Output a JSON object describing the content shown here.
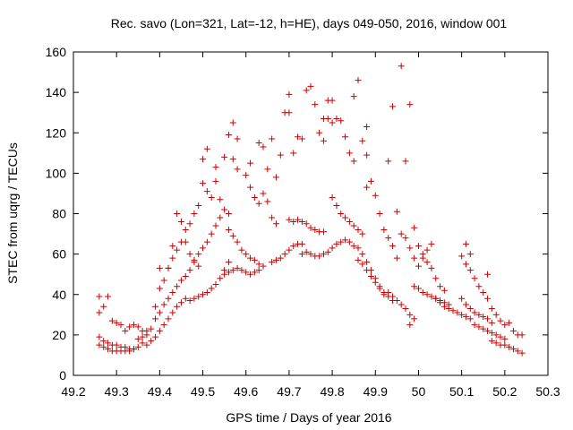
{
  "chart_data": {
    "type": "scatter",
    "title": "Rec. savo (Lon=321, Lat=-12, h=HE), days 049-050, 2016, window 001",
    "xlabel": "GPS time / Days of year 2016",
    "ylabel": "STEC from uqrg / TECUs",
    "xlim": [
      49.2,
      50.3
    ],
    "ylim": [
      0,
      160
    ],
    "xticks": [
      "49.2",
      "49.3",
      "49.4",
      "49.5",
      "49.6",
      "49.7",
      "49.8",
      "49.9",
      "50",
      "50.1",
      "50.2",
      "50.3"
    ],
    "yticks": [
      "0",
      "20",
      "40",
      "60",
      "80",
      "100",
      "120",
      "140",
      "160"
    ],
    "grid": false,
    "marker": "+",
    "marker_color": "#cc0000",
    "series": [
      {
        "points": [
          [
            49.26,
            39
          ],
          [
            49.26,
            31
          ],
          [
            49.27,
            34
          ],
          [
            49.28,
            39
          ],
          [
            49.26,
            19
          ],
          [
            49.27,
            17
          ],
          [
            49.28,
            16
          ],
          [
            49.29,
            15
          ],
          [
            49.3,
            15
          ],
          [
            49.31,
            14
          ],
          [
            49.32,
            14
          ],
          [
            49.33,
            13
          ],
          [
            49.34,
            13
          ],
          [
            49.26,
            15
          ],
          [
            49.27,
            14
          ],
          [
            49.28,
            13
          ],
          [
            49.29,
            12
          ],
          [
            49.3,
            12
          ],
          [
            49.31,
            12
          ],
          [
            49.32,
            12
          ],
          [
            49.33,
            12
          ],
          [
            49.34,
            13
          ],
          [
            49.35,
            14
          ],
          [
            49.36,
            16
          ],
          [
            49.29,
            27
          ],
          [
            49.3,
            26
          ],
          [
            49.31,
            25
          ],
          [
            49.32,
            22
          ],
          [
            49.33,
            24
          ],
          [
            49.34,
            25
          ],
          [
            49.35,
            24
          ],
          [
            49.36,
            22
          ],
          [
            49.37,
            22
          ],
          [
            49.35,
            18
          ],
          [
            49.36,
            19
          ],
          [
            49.37,
            20
          ],
          [
            49.38,
            23
          ],
          [
            49.39,
            28
          ],
          [
            49.4,
            31
          ],
          [
            49.41,
            35
          ],
          [
            49.42,
            38
          ],
          [
            49.43,
            41
          ],
          [
            49.44,
            44
          ],
          [
            49.37,
            15
          ],
          [
            49.38,
            17
          ],
          [
            49.39,
            19
          ],
          [
            49.4,
            22
          ],
          [
            49.41,
            25
          ],
          [
            49.42,
            28
          ],
          [
            49.43,
            31
          ],
          [
            49.44,
            34
          ],
          [
            49.45,
            36
          ],
          [
            49.46,
            38
          ],
          [
            49.39,
            34
          ],
          [
            49.4,
            43
          ],
          [
            49.41,
            47
          ],
          [
            49.42,
            53
          ],
          [
            49.43,
            58
          ],
          [
            49.44,
            62
          ],
          [
            49.45,
            66
          ],
          [
            49.46,
            72
          ],
          [
            49.47,
            75
          ],
          [
            49.48,
            80
          ],
          [
            49.4,
            53
          ],
          [
            49.42,
            53
          ],
          [
            49.43,
            64
          ],
          [
            49.44,
            80
          ],
          [
            49.45,
            76
          ],
          [
            49.46,
            66
          ],
          [
            49.47,
            60
          ],
          [
            49.48,
            57
          ],
          [
            49.49,
            54
          ],
          [
            49.47,
            37
          ],
          [
            49.48,
            38
          ],
          [
            49.49,
            39
          ],
          [
            49.5,
            40
          ],
          [
            49.51,
            41
          ],
          [
            49.52,
            43
          ],
          [
            49.53,
            45
          ],
          [
            49.54,
            48
          ],
          [
            49.55,
            52
          ],
          [
            49.56,
            56
          ],
          [
            49.45,
            47
          ],
          [
            49.46,
            49
          ],
          [
            49.47,
            52
          ],
          [
            49.48,
            56
          ],
          [
            49.49,
            60
          ],
          [
            49.5,
            63
          ],
          [
            49.51,
            66
          ],
          [
            49.52,
            70
          ],
          [
            49.53,
            74
          ],
          [
            49.54,
            78
          ],
          [
            49.49,
            84
          ],
          [
            49.5,
            95
          ],
          [
            49.51,
            91
          ],
          [
            49.52,
            88
          ],
          [
            49.53,
            96
          ],
          [
            49.54,
            87
          ],
          [
            49.55,
            82
          ],
          [
            49.56,
            80
          ],
          [
            49.5,
            107
          ],
          [
            49.51,
            112
          ],
          [
            49.53,
            103
          ],
          [
            49.55,
            108
          ],
          [
            49.56,
            119
          ],
          [
            49.57,
            125
          ],
          [
            49.58,
            117
          ],
          [
            49.57,
            107
          ],
          [
            49.58,
            102
          ],
          [
            49.56,
            72
          ],
          [
            49.57,
            69
          ],
          [
            49.58,
            66
          ],
          [
            49.59,
            62
          ],
          [
            49.6,
            60
          ],
          [
            49.61,
            58
          ],
          [
            49.62,
            57
          ],
          [
            49.63,
            55
          ],
          [
            49.55,
            50
          ],
          [
            49.56,
            51
          ],
          [
            49.57,
            52
          ],
          [
            49.58,
            53
          ],
          [
            49.59,
            52
          ],
          [
            49.6,
            51
          ],
          [
            49.61,
            50
          ],
          [
            49.62,
            51
          ],
          [
            49.63,
            52
          ],
          [
            49.64,
            54
          ],
          [
            49.6,
            99
          ],
          [
            49.61,
            93
          ],
          [
            49.62,
            88
          ],
          [
            49.63,
            85
          ],
          [
            49.64,
            90
          ],
          [
            49.65,
            86
          ],
          [
            49.66,
            78
          ],
          [
            49.67,
            75
          ],
          [
            49.61,
            105
          ],
          [
            49.63,
            115
          ],
          [
            49.64,
            113
          ],
          [
            49.65,
            102
          ],
          [
            49.66,
            117
          ],
          [
            49.67,
            98
          ],
          [
            49.68,
            109
          ],
          [
            49.69,
            130
          ],
          [
            49.7,
            130
          ],
          [
            49.66,
            56
          ],
          [
            49.67,
            57
          ],
          [
            49.68,
            58
          ],
          [
            49.69,
            60
          ],
          [
            49.7,
            62
          ],
          [
            49.71,
            64
          ],
          [
            49.72,
            65
          ],
          [
            49.73,
            65
          ],
          [
            49.7,
            139
          ],
          [
            49.71,
            110
          ],
          [
            49.72,
            118
          ],
          [
            49.73,
            117
          ],
          [
            49.74,
            141
          ],
          [
            49.75,
            143
          ],
          [
            49.76,
            134
          ],
          [
            49.77,
            120
          ],
          [
            49.78,
            116
          ],
          [
            49.7,
            77
          ],
          [
            49.71,
            76
          ],
          [
            49.72,
            77
          ],
          [
            49.73,
            76
          ],
          [
            49.74,
            75
          ],
          [
            49.75,
            73
          ],
          [
            49.76,
            72
          ],
          [
            49.77,
            71
          ],
          [
            49.78,
            71
          ],
          [
            49.73,
            60
          ],
          [
            49.74,
            61
          ],
          [
            49.75,
            60
          ],
          [
            49.76,
            59
          ],
          [
            49.77,
            59
          ],
          [
            49.78,
            60
          ],
          [
            49.79,
            61
          ],
          [
            49.8,
            63
          ],
          [
            49.81,
            65
          ],
          [
            49.82,
            66
          ],
          [
            49.78,
            127
          ],
          [
            49.79,
            127
          ],
          [
            49.8,
            125
          ],
          [
            49.81,
            127
          ],
          [
            49.82,
            126
          ],
          [
            49.83,
            118
          ],
          [
            49.84,
            110
          ],
          [
            49.85,
            106
          ],
          [
            49.79,
            136
          ],
          [
            49.8,
            136
          ],
          [
            49.85,
            138
          ],
          [
            49.86,
            146
          ],
          [
            49.88,
            123
          ],
          [
            49.87,
            116
          ],
          [
            49.88,
            109
          ],
          [
            49.8,
            88
          ],
          [
            49.81,
            84
          ],
          [
            49.82,
            80
          ],
          [
            49.83,
            78
          ],
          [
            49.84,
            76
          ],
          [
            49.85,
            74
          ],
          [
            49.86,
            72
          ],
          [
            49.87,
            70
          ],
          [
            49.83,
            67
          ],
          [
            49.84,
            66
          ],
          [
            49.85,
            64
          ],
          [
            49.86,
            63
          ],
          [
            49.87,
            60
          ],
          [
            49.88,
            56
          ],
          [
            49.89,
            52
          ],
          [
            49.9,
            48
          ],
          [
            49.91,
            44
          ],
          [
            49.92,
            40
          ],
          [
            49.86,
            57
          ],
          [
            49.87,
            55
          ],
          [
            49.88,
            52
          ],
          [
            49.89,
            49
          ],
          [
            49.9,
            46
          ],
          [
            49.91,
            43
          ],
          [
            49.92,
            41
          ],
          [
            49.93,
            39
          ],
          [
            49.94,
            37
          ],
          [
            49.88,
            93
          ],
          [
            49.89,
            96
          ],
          [
            49.9,
            89
          ],
          [
            49.91,
            80
          ],
          [
            49.92,
            72
          ],
          [
            49.93,
            68
          ],
          [
            49.94,
            64
          ],
          [
            49.95,
            58
          ],
          [
            49.93,
            106
          ],
          [
            49.94,
            133
          ],
          [
            49.95,
            81
          ],
          [
            49.96,
            153
          ],
          [
            49.97,
            106
          ],
          [
            49.98,
            134
          ],
          [
            49.99,
            73
          ],
          [
            49.93,
            41
          ],
          [
            49.94,
            39
          ],
          [
            49.95,
            37
          ],
          [
            49.96,
            35
          ],
          [
            49.97,
            33
          ],
          [
            49.98,
            30
          ],
          [
            49.99,
            28
          ],
          [
            49.98,
            25
          ],
          [
            49.96,
            70
          ],
          [
            49.97,
            68
          ],
          [
            49.98,
            63
          ],
          [
            49.99,
            58
          ],
          [
            50.0,
            54
          ],
          [
            50.01,
            58
          ],
          [
            50.02,
            62
          ],
          [
            50.03,
            65
          ],
          [
            49.99,
            44
          ],
          [
            50.0,
            43
          ],
          [
            50.01,
            41
          ],
          [
            50.02,
            40
          ],
          [
            50.03,
            39
          ],
          [
            50.04,
            38
          ],
          [
            50.05,
            37
          ],
          [
            50.06,
            36
          ],
          [
            50.07,
            35
          ],
          [
            50.0,
            64
          ],
          [
            50.01,
            60
          ],
          [
            50.02,
            56
          ],
          [
            50.03,
            53
          ],
          [
            50.04,
            48
          ],
          [
            50.05,
            44
          ],
          [
            50.06,
            42
          ],
          [
            50.04,
            38
          ],
          [
            50.05,
            36
          ],
          [
            50.06,
            34
          ],
          [
            50.07,
            33
          ],
          [
            50.08,
            32
          ],
          [
            50.09,
            31
          ],
          [
            50.1,
            30
          ],
          [
            50.11,
            29
          ],
          [
            50.12,
            28
          ],
          [
            50.1,
            59
          ],
          [
            50.11,
            65
          ],
          [
            50.12,
            60
          ],
          [
            50.11,
            55
          ],
          [
            50.12,
            52
          ],
          [
            50.13,
            48
          ],
          [
            50.14,
            44
          ],
          [
            50.15,
            41
          ],
          [
            50.16,
            50
          ],
          [
            50.1,
            38
          ],
          [
            50.11,
            35
          ],
          [
            50.12,
            33
          ],
          [
            50.13,
            31
          ],
          [
            50.14,
            30
          ],
          [
            50.15,
            29
          ],
          [
            50.16,
            28
          ],
          [
            50.17,
            26
          ],
          [
            50.13,
            25
          ],
          [
            50.14,
            24
          ],
          [
            50.15,
            23
          ],
          [
            50.16,
            22
          ],
          [
            50.17,
            21
          ],
          [
            50.18,
            20
          ],
          [
            50.19,
            19
          ],
          [
            50.2,
            18
          ],
          [
            50.16,
            38
          ],
          [
            50.17,
            33
          ],
          [
            50.18,
            30
          ],
          [
            50.19,
            27
          ],
          [
            50.2,
            25
          ],
          [
            50.21,
            26
          ],
          [
            50.22,
            22
          ],
          [
            50.23,
            20
          ],
          [
            50.24,
            20
          ],
          [
            50.17,
            17
          ],
          [
            50.18,
            16
          ],
          [
            50.19,
            15
          ],
          [
            50.2,
            15
          ],
          [
            50.21,
            14
          ],
          [
            50.22,
            13
          ],
          [
            50.23,
            12
          ],
          [
            50.24,
            11
          ]
        ]
      }
    ]
  }
}
